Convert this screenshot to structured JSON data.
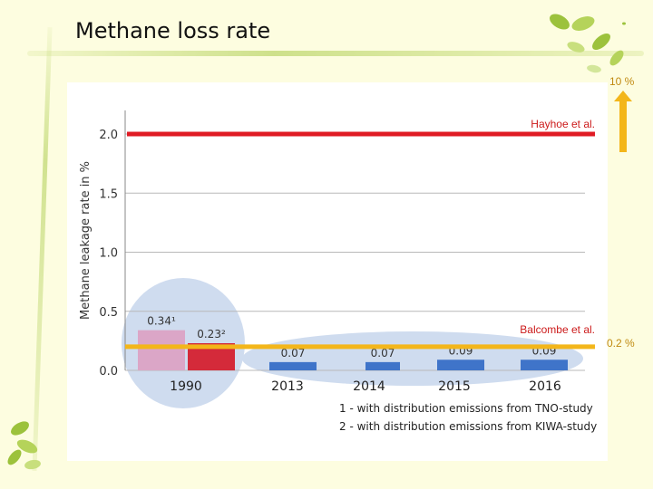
{
  "slide": {
    "title": "Methane loss rate"
  },
  "annotations": {
    "top_value": "10 %",
    "bottom_value": "0.2 %"
  },
  "colors": {
    "bar_1990_tno": "#dba6c7",
    "bar_1990_kiwa": "#d42a3a",
    "bar_recent": "#3f74c9",
    "hayhoe_line": "#e01b24",
    "balcombe_line": "#f3b61a",
    "arrow": "#f3b61a",
    "ellipse": "#cfdcef"
  },
  "chart_data": {
    "type": "bar",
    "ylabel": "Methane leakage rate in %",
    "ylim": [
      0,
      2.2
    ],
    "yticks": [
      "0.0",
      "0.5",
      "1.0",
      "1.5",
      "2.0"
    ],
    "ytick_values": [
      0,
      0.5,
      1.0,
      1.5,
      2.0
    ],
    "categories": [
      "1990",
      "2013",
      "2014",
      "2015",
      "2016"
    ],
    "bars": [
      {
        "category": "1990",
        "value": 0.34,
        "label": "0.34¹",
        "color_key": "bar_1990_tno"
      },
      {
        "category": "1990",
        "value": 0.23,
        "label": "0.23²",
        "color_key": "bar_1990_kiwa"
      },
      {
        "category": "2013",
        "value": 0.07,
        "label": "0.07",
        "color_key": "bar_recent"
      },
      {
        "category": "2014",
        "value": 0.07,
        "label": "0.07",
        "color_key": "bar_recent"
      },
      {
        "category": "2015",
        "value": 0.09,
        "label": "0.09",
        "color_key": "bar_recent"
      },
      {
        "category": "2016",
        "value": 0.09,
        "label": "0.09",
        "color_key": "bar_recent"
      }
    ],
    "reference_lines": [
      {
        "name": "Hayhoe et al.",
        "value": 2.0,
        "color_key": "hayhoe_line"
      },
      {
        "name": "Balcombe et al.",
        "value": 0.2,
        "color_key": "balcombe_line"
      }
    ],
    "footnotes": [
      "1 - with distribution emissions from TNO-study",
      "2 - with distribution emissions from KIWA-study"
    ],
    "grid": true
  }
}
